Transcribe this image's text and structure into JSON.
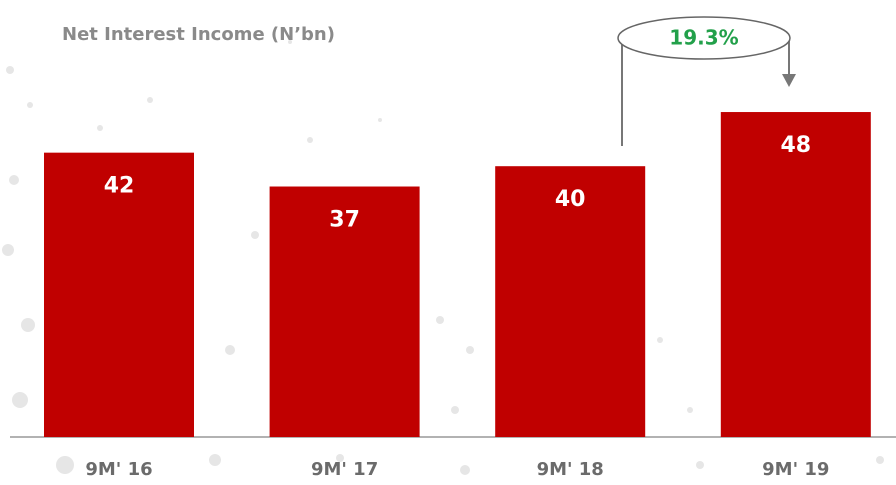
{
  "chart_data": {
    "type": "bar",
    "title": "Net Interest Income (N’bn)",
    "categories": [
      "9M' 16",
      "9M' 17",
      "9M' 18",
      "9M' 19"
    ],
    "values": [
      42,
      37,
      40,
      48
    ],
    "color": "#c00000",
    "annotation": "19.3%"
  }
}
